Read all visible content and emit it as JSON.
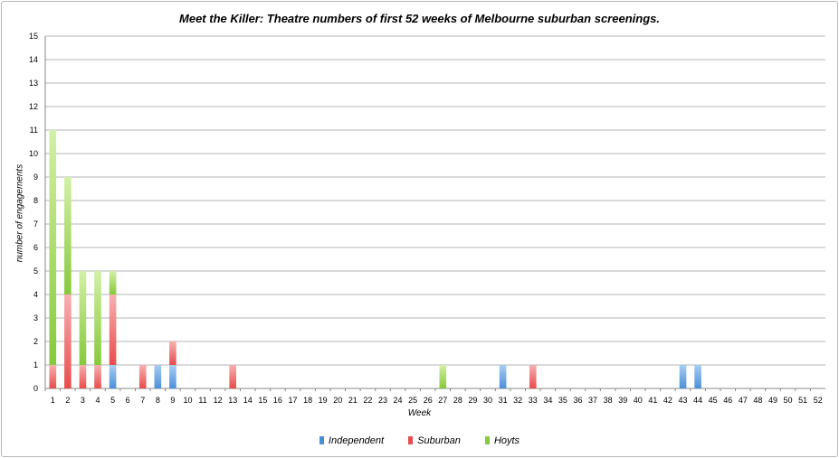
{
  "chart_data": {
    "type": "bar",
    "stacked": true,
    "title": "Meet the Killer: Theatre numbers of first 52 weeks of Melbourne suburban screenings.",
    "xlabel": "Week",
    "ylabel": "number of engagements",
    "ylim": [
      0,
      15
    ],
    "yticks": [
      0,
      1,
      2,
      3,
      4,
      5,
      6,
      7,
      8,
      9,
      10,
      11,
      12,
      13,
      14,
      15
    ],
    "categories": [
      1,
      2,
      3,
      4,
      5,
      6,
      7,
      8,
      9,
      10,
      11,
      12,
      13,
      14,
      15,
      16,
      17,
      18,
      19,
      20,
      21,
      22,
      23,
      24,
      25,
      26,
      27,
      28,
      29,
      30,
      31,
      32,
      33,
      34,
      35,
      36,
      37,
      38,
      39,
      40,
      41,
      42,
      43,
      44,
      45,
      46,
      47,
      48,
      49,
      50,
      51,
      52
    ],
    "grid": true,
    "legend_position": "bottom",
    "series": [
      {
        "name": "Independent",
        "color": "#4a90d9",
        "values": [
          0,
          0,
          0,
          0,
          1,
          0,
          0,
          1,
          1,
          0,
          0,
          0,
          0,
          0,
          0,
          0,
          0,
          0,
          0,
          0,
          0,
          0,
          0,
          0,
          0,
          0,
          0,
          0,
          0,
          0,
          1,
          0,
          0,
          0,
          0,
          0,
          0,
          0,
          0,
          0,
          0,
          0,
          1,
          1,
          0,
          0,
          0,
          0,
          0,
          0,
          0,
          0
        ]
      },
      {
        "name": "Suburban",
        "color": "#e84c4c",
        "values": [
          1,
          4,
          1,
          1,
          3,
          0,
          1,
          0,
          1,
          0,
          0,
          0,
          1,
          0,
          0,
          0,
          0,
          0,
          0,
          0,
          0,
          0,
          0,
          0,
          0,
          0,
          0,
          0,
          0,
          0,
          0,
          0,
          1,
          0,
          0,
          0,
          0,
          0,
          0,
          0,
          0,
          0,
          0,
          0,
          0,
          0,
          0,
          0,
          0,
          0,
          0,
          0
        ]
      },
      {
        "name": "Hoyts",
        "color": "#86c93c",
        "values": [
          10,
          5,
          4,
          4,
          1,
          0,
          0,
          0,
          0,
          0,
          0,
          0,
          0,
          0,
          0,
          0,
          0,
          0,
          0,
          0,
          0,
          0,
          0,
          0,
          0,
          0,
          1,
          0,
          0,
          0,
          0,
          0,
          0,
          0,
          0,
          0,
          0,
          0,
          0,
          0,
          0,
          0,
          0,
          0,
          0,
          0,
          0,
          0,
          0,
          0,
          0,
          0
        ]
      }
    ]
  }
}
